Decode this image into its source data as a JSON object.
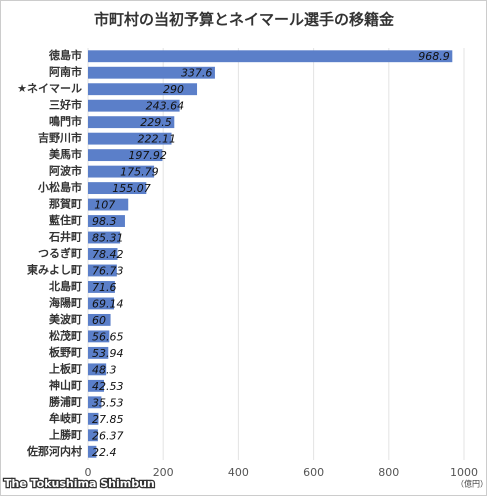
{
  "chart_data": {
    "type": "bar",
    "orientation": "horizontal",
    "title": "市町村の当初予算とネイマール選手の移籍金",
    "categories": [
      "徳島市",
      "阿南市",
      "★ネイマール",
      "三好市",
      "鳴門市",
      "吉野川市",
      "美馬市",
      "阿波市",
      "小松島市",
      "那賀町",
      "藍住町",
      "石井町",
      "つるぎ町",
      "東みよし町",
      "北島町",
      "海陽町",
      "美波町",
      "松茂町",
      "板野町",
      "上板町",
      "神山町",
      "勝浦町",
      "牟岐町",
      "上勝町",
      "佐那河内村"
    ],
    "values": [
      968.9,
      337.6,
      290,
      243.64,
      229.5,
      222.11,
      197.92,
      175.79,
      155.07,
      107,
      98.3,
      85.31,
      78.42,
      76.73,
      71.6,
      69.14,
      60,
      56.65,
      53.94,
      48.3,
      42.53,
      35.53,
      27.85,
      26.37,
      22.4
    ],
    "color": "#5b7fc9",
    "xlim": [
      0,
      1000
    ],
    "xticks": [
      0,
      200,
      400,
      600,
      800,
      1000
    ],
    "grid": true,
    "unit_label": "（億円）",
    "source": "The Tokushima Shimbun"
  }
}
